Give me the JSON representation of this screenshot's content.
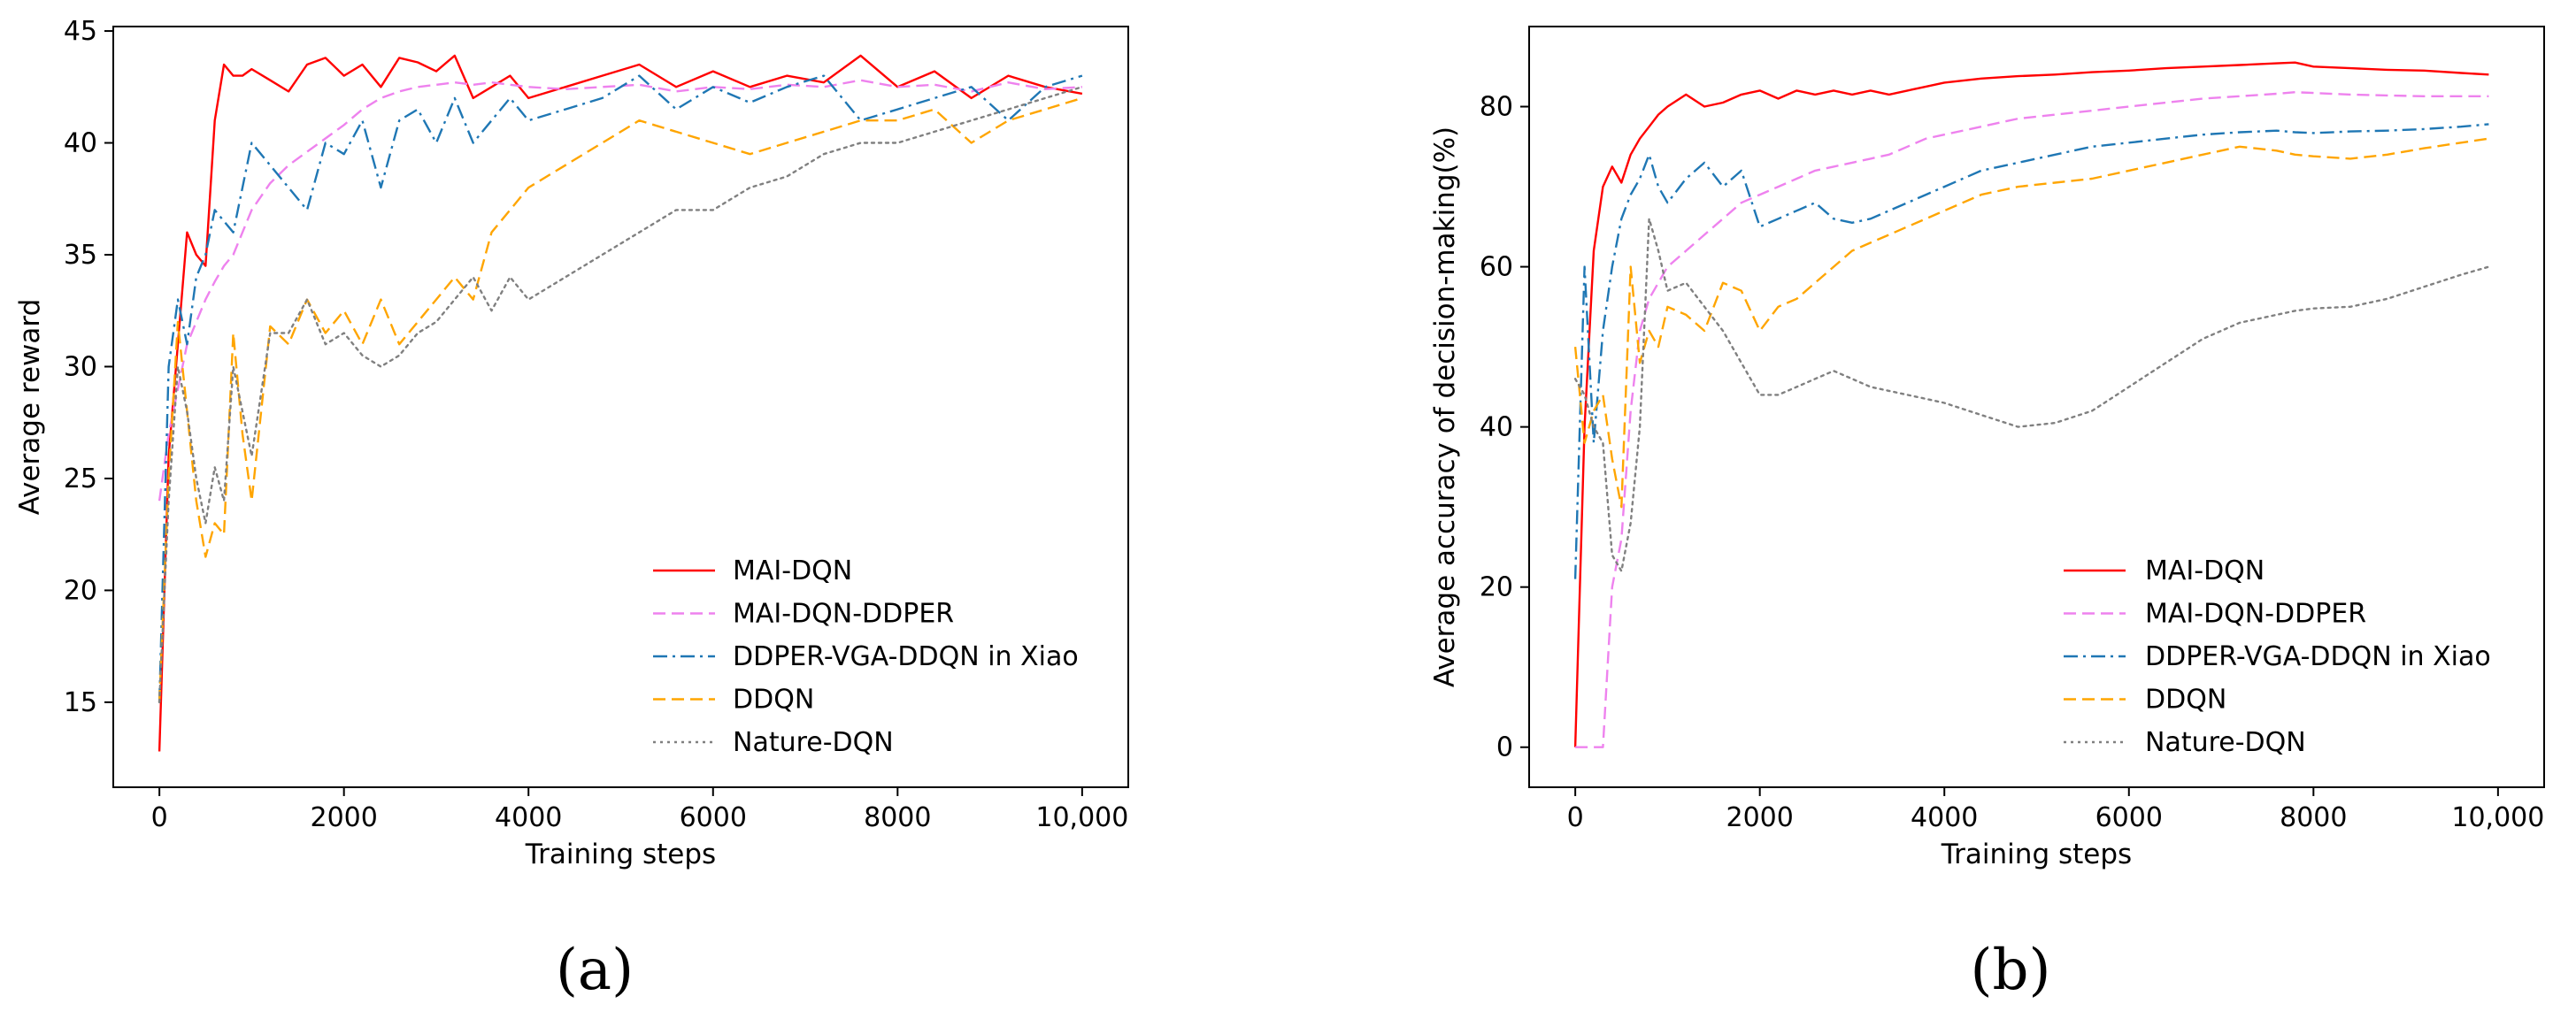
{
  "chart_data": [
    {
      "type": "line",
      "panel_label": "(a)",
      "xlabel": "Training steps",
      "ylabel": "Average reward",
      "xlim": [
        -500,
        10500
      ],
      "ylim": [
        11.2,
        45.2
      ],
      "xticks": [
        0,
        2000,
        4000,
        6000,
        8000,
        10000
      ],
      "xtick_labels": [
        "0",
        "2000",
        "4000",
        "6000",
        "8000",
        "10,000"
      ],
      "yticks": [
        15,
        20,
        25,
        30,
        35,
        40,
        45
      ],
      "ytick_labels": [
        "15",
        "20",
        "25",
        "30",
        "35",
        "40",
        "45"
      ],
      "legend_position": "lower-right",
      "series": [
        {
          "name": "MAI-DQN",
          "color": "#ff0000",
          "style": "solid",
          "x": [
            0,
            100,
            200,
            300,
            400,
            500,
            600,
            700,
            800,
            900,
            1000,
            1200,
            1400,
            1600,
            1800,
            2000,
            2200,
            2400,
            2600,
            2800,
            3000,
            3200,
            3400,
            3600,
            3800,
            4000,
            4400,
            4800,
            5200,
            5600,
            6000,
            6400,
            6800,
            7200,
            7600,
            8000,
            8400,
            8800,
            9200,
            9600,
            10000
          ],
          "y": [
            12.8,
            26,
            31,
            36,
            35,
            34.5,
            41,
            43.5,
            43,
            43,
            43.3,
            42.8,
            42.3,
            43.5,
            43.8,
            43,
            43.5,
            42.5,
            43.8,
            43.6,
            43.2,
            43.9,
            42,
            42.5,
            43,
            42,
            42.5,
            43,
            43.5,
            42.5,
            43.2,
            42.5,
            43,
            42.7,
            43.9,
            42.5,
            43.2,
            42,
            43,
            42.5,
            42.2
          ]
        },
        {
          "name": "MAI-DQN-DDPER",
          "color": "#ee82ee",
          "style": "dashed",
          "x": [
            0,
            100,
            200,
            300,
            400,
            500,
            600,
            700,
            800,
            900,
            1000,
            1200,
            1400,
            1600,
            1800,
            2000,
            2200,
            2400,
            2600,
            2800,
            3000,
            3200,
            3400,
            3600,
            3800,
            4000,
            4400,
            4800,
            5200,
            5600,
            6000,
            6400,
            6800,
            7200,
            7600,
            8000,
            8400,
            8800,
            9200,
            9600,
            10000
          ],
          "y": [
            24,
            27,
            29,
            31,
            32,
            33,
            33.8,
            34.5,
            35,
            36,
            37,
            38.2,
            39,
            39.6,
            40.2,
            40.8,
            41.5,
            42,
            42.3,
            42.5,
            42.6,
            42.7,
            42.6,
            42.7,
            42.6,
            42.5,
            42.4,
            42.5,
            42.6,
            42.3,
            42.5,
            42.4,
            42.6,
            42.5,
            42.8,
            42.5,
            42.6,
            42.3,
            42.7,
            42.4,
            42.5
          ]
        },
        {
          "name": "DDPER-VGA-DDQN in Xiao",
          "color": "#1f77b4",
          "style": "dashdot",
          "x": [
            0,
            100,
            200,
            300,
            400,
            500,
            600,
            700,
            800,
            900,
            1000,
            1200,
            1400,
            1600,
            1800,
            2000,
            2200,
            2400,
            2600,
            2800,
            3000,
            3200,
            3400,
            3600,
            3800,
            4000,
            4400,
            4800,
            5200,
            5600,
            6000,
            6400,
            6800,
            7200,
            7600,
            8000,
            8400,
            8800,
            9200,
            9600,
            10000
          ],
          "y": [
            15,
            30,
            33,
            31,
            34,
            35,
            37,
            36.5,
            36,
            38,
            40,
            39,
            38,
            37,
            40,
            39.5,
            41,
            38,
            41,
            41.5,
            40,
            42,
            40,
            41,
            42,
            41,
            41.5,
            42,
            43,
            41.5,
            42.5,
            41.8,
            42.5,
            43,
            41,
            41.5,
            42,
            42.5,
            41,
            42.5,
            43
          ]
        },
        {
          "name": "DDQN",
          "color": "#ffa500",
          "style": "dashed",
          "x": [
            0,
            100,
            200,
            300,
            400,
            500,
            600,
            700,
            800,
            900,
            1000,
            1200,
            1400,
            1600,
            1800,
            2000,
            2200,
            2400,
            2600,
            2800,
            3000,
            3200,
            3400,
            3600,
            3800,
            4000,
            4400,
            4800,
            5200,
            5600,
            6000,
            6400,
            6800,
            7200,
            7600,
            8000,
            8400,
            8800,
            9200,
            9600,
            10000
          ],
          "y": [
            15,
            25,
            32,
            28,
            24,
            21.5,
            23,
            22.5,
            31.5,
            27,
            24,
            31.8,
            31,
            33,
            31.5,
            32.5,
            31,
            33,
            31,
            32,
            33,
            34,
            33,
            36,
            37,
            38,
            39,
            40,
            41,
            40.5,
            40,
            39.5,
            40,
            40.5,
            41,
            41,
            41.5,
            40,
            41,
            41.5,
            42
          ]
        },
        {
          "name": "Nature-DQN",
          "color": "#808080",
          "style": "dotted",
          "x": [
            0,
            100,
            200,
            300,
            400,
            500,
            600,
            700,
            800,
            900,
            1000,
            1200,
            1400,
            1600,
            1800,
            2000,
            2200,
            2400,
            2600,
            2800,
            3000,
            3200,
            3400,
            3600,
            3800,
            4000,
            4400,
            4800,
            5200,
            5600,
            6000,
            6400,
            6800,
            7200,
            7600,
            8000,
            8400,
            8800,
            9200,
            9600,
            10000
          ],
          "y": [
            15,
            24,
            30,
            28,
            25,
            23,
            25.5,
            24,
            30,
            28,
            26,
            31.5,
            31.5,
            33,
            31,
            31.5,
            30.5,
            30,
            30.5,
            31.5,
            32,
            33,
            34,
            32.5,
            34,
            33,
            34,
            35,
            36,
            37,
            37,
            38,
            38.5,
            39.5,
            40,
            40,
            40.5,
            41,
            41.5,
            42,
            42.5
          ]
        }
      ]
    },
    {
      "type": "line",
      "panel_label": "(b)",
      "xlabel": "Training steps",
      "ylabel": "Average accuracy of decision-making(%)",
      "xlim": [
        -500,
        10500
      ],
      "ylim": [
        -5,
        90
      ],
      "xticks": [
        0,
        2000,
        4000,
        6000,
        8000,
        10000
      ],
      "xtick_labels": [
        "0",
        "2000",
        "4000",
        "6000",
        "8000",
        "10,000"
      ],
      "yticks": [
        0,
        20,
        40,
        60,
        80
      ],
      "ytick_labels": [
        "0",
        "20",
        "40",
        "60",
        "80"
      ],
      "legend_position": "lower-right",
      "series": [
        {
          "name": "MAI-DQN",
          "color": "#ff0000",
          "style": "solid",
          "x": [
            0,
            100,
            200,
            300,
            400,
            500,
            600,
            700,
            800,
            900,
            1000,
            1200,
            1400,
            1600,
            1800,
            2000,
            2200,
            2400,
            2600,
            2800,
            3000,
            3200,
            3400,
            3600,
            3800,
            4000,
            4400,
            4800,
            5200,
            5600,
            6000,
            6400,
            6800,
            7200,
            7600,
            7800,
            8000,
            8400,
            8800,
            9200,
            9600,
            9900
          ],
          "y": [
            0,
            40,
            62,
            70,
            72.5,
            70.5,
            74,
            76,
            77.5,
            79,
            80,
            81.5,
            80,
            80.5,
            81.5,
            82,
            81,
            82,
            81.5,
            82,
            81.5,
            82,
            81.5,
            82,
            82.5,
            83,
            83.5,
            83.8,
            84,
            84.3,
            84.5,
            84.8,
            85,
            85.2,
            85.4,
            85.5,
            85,
            84.8,
            84.6,
            84.5,
            84.2,
            84
          ]
        },
        {
          "name": "MAI-DQN-DDPER",
          "color": "#ee82ee",
          "style": "dashed",
          "x": [
            0,
            100,
            200,
            300,
            400,
            500,
            600,
            700,
            800,
            900,
            1000,
            1200,
            1400,
            1600,
            1800,
            2000,
            2200,
            2400,
            2600,
            2800,
            3000,
            3200,
            3400,
            3600,
            3800,
            4000,
            4400,
            4800,
            5200,
            5600,
            6000,
            6400,
            6800,
            7200,
            7600,
            7800,
            8000,
            8400,
            8800,
            9200,
            9600,
            9900
          ],
          "y": [
            0,
            0,
            0,
            0,
            20,
            26,
            42,
            52,
            56,
            58,
            60,
            62,
            64,
            66,
            68,
            69,
            70,
            71,
            72,
            72.5,
            73,
            73.5,
            74,
            75,
            76,
            76.5,
            77.5,
            78.5,
            79,
            79.5,
            80,
            80.5,
            81,
            81.3,
            81.6,
            81.8,
            81.7,
            81.5,
            81.4,
            81.3,
            81.3,
            81.3
          ]
        },
        {
          "name": "DDPER-VGA-DDQN in Xiao",
          "color": "#1f77b4",
          "style": "dashdot",
          "x": [
            0,
            100,
            200,
            300,
            400,
            500,
            600,
            700,
            800,
            900,
            1000,
            1200,
            1400,
            1600,
            1800,
            2000,
            2200,
            2400,
            2600,
            2800,
            3000,
            3200,
            3400,
            3600,
            3800,
            4000,
            4400,
            4800,
            5200,
            5600,
            6000,
            6400,
            6800,
            7200,
            7600,
            7800,
            8000,
            8400,
            8800,
            9200,
            9600,
            9900
          ],
          "y": [
            21,
            60,
            38,
            52,
            60,
            66,
            69,
            71,
            74,
            70,
            68,
            71,
            73,
            70,
            72,
            65,
            66,
            67,
            68,
            66,
            65.5,
            66,
            67,
            68,
            69,
            70,
            72,
            73,
            74,
            75,
            75.5,
            76,
            76.5,
            76.8,
            77,
            76.8,
            76.7,
            76.9,
            77,
            77.2,
            77.5,
            77.8
          ]
        },
        {
          "name": "DDQN",
          "color": "#ffa500",
          "style": "dashed",
          "x": [
            0,
            100,
            200,
            300,
            400,
            500,
            600,
            700,
            800,
            900,
            1000,
            1200,
            1400,
            1600,
            1800,
            2000,
            2200,
            2400,
            2600,
            2800,
            3000,
            3200,
            3400,
            3600,
            3800,
            4000,
            4400,
            4800,
            5200,
            5600,
            6000,
            6400,
            6800,
            7200,
            7600,
            7800,
            8000,
            8400,
            8800,
            9200,
            9600,
            9900
          ],
          "y": [
            50,
            38,
            42,
            44,
            36,
            30,
            60,
            48,
            52,
            50,
            55,
            54,
            52,
            58,
            57,
            52,
            55,
            56,
            58,
            60,
            62,
            63,
            64,
            65,
            66,
            67,
            69,
            70,
            70.5,
            71,
            72,
            73,
            74,
            75,
            74.5,
            74,
            73.8,
            73.5,
            74,
            74.8,
            75.5,
            76
          ]
        },
        {
          "name": "Nature-DQN",
          "color": "#808080",
          "style": "dotted",
          "x": [
            0,
            100,
            200,
            300,
            400,
            500,
            600,
            700,
            800,
            900,
            1000,
            1200,
            1400,
            1600,
            1800,
            2000,
            2200,
            2400,
            2600,
            2800,
            3000,
            3200,
            3400,
            3600,
            3800,
            4000,
            4400,
            4800,
            5200,
            5600,
            6000,
            6400,
            6800,
            7200,
            7600,
            7800,
            8000,
            8400,
            8800,
            9200,
            9600,
            9900
          ],
          "y": [
            46,
            44,
            40,
            38,
            24,
            22,
            28,
            40,
            66,
            62,
            57,
            58,
            55,
            52,
            48,
            44,
            44,
            45,
            46,
            47,
            46,
            45,
            44.5,
            44,
            43.5,
            43,
            41.5,
            40,
            40.5,
            42,
            45,
            48,
            51,
            53,
            54,
            54.5,
            54.8,
            55,
            56,
            57.5,
            59,
            60
          ]
        }
      ]
    }
  ]
}
